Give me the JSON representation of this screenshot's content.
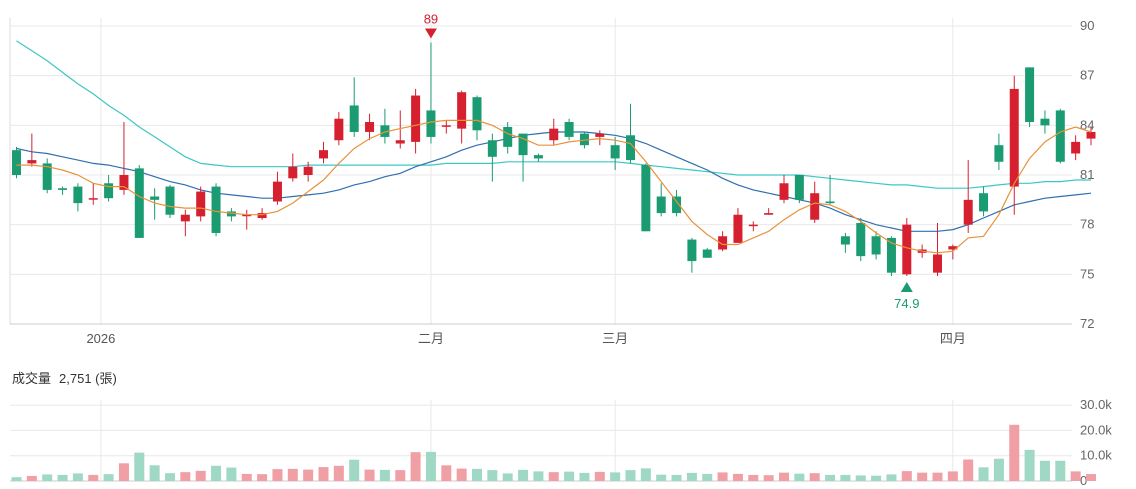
{
  "volume_header": {
    "label": "成交量",
    "value": "2,751 (張)"
  },
  "colors": {
    "up": "#d6202f",
    "down": "#1a9b72",
    "ma_short": "#e8923a",
    "ma_mid": "#2f6fb0",
    "ma_long": "#3cc7c7",
    "vol_up": "#f0a0a5",
    "vol_down": "#9fd8c4",
    "grid": "#e8e8e8"
  },
  "chart_data": [
    {
      "type": "candlestick",
      "title": "",
      "ylim": [
        72,
        90
      ],
      "yticks": [
        "90",
        "87",
        "84",
        "81",
        "78",
        "75",
        "72"
      ],
      "xticks": [
        {
          "label": "2026",
          "index": 5.5
        },
        {
          "label": "二月",
          "index": 27
        },
        {
          "label": "三月",
          "index": 39
        },
        {
          "label": "四月",
          "index": 61
        }
      ],
      "grid": true,
      "annotations": [
        {
          "label": "89",
          "index": 27,
          "value": 89.0,
          "kind": "high"
        },
        {
          "label": "74.9",
          "index": 58,
          "value": 74.9,
          "kind": "low"
        }
      ],
      "candles": [
        [
          82.5,
          81.0,
          82.7,
          80.8
        ],
        [
          81.7,
          81.9,
          83.5,
          81.5
        ],
        [
          81.7,
          80.1,
          82.0,
          79.9
        ],
        [
          80.2,
          80.1,
          80.3,
          79.8
        ],
        [
          80.3,
          79.3,
          80.5,
          78.8
        ],
        [
          79.6,
          79.6,
          80.5,
          79.2
        ],
        [
          80.5,
          79.6,
          81.0,
          79.4
        ],
        [
          80.1,
          81.0,
          84.2,
          79.8
        ],
        [
          81.4,
          77.2,
          81.6,
          77.2
        ],
        [
          79.7,
          79.5,
          80.2,
          78.3
        ],
        [
          80.3,
          78.6,
          80.4,
          78.4
        ],
        [
          78.2,
          78.6,
          78.9,
          77.3
        ],
        [
          78.5,
          80.0,
          80.3,
          78.2
        ],
        [
          80.3,
          77.5,
          80.5,
          77.3
        ],
        [
          78.8,
          78.5,
          79.0,
          78.2
        ],
        [
          78.6,
          78.6,
          78.9,
          77.7
        ],
        [
          78.4,
          78.7,
          79.0,
          78.3
        ],
        [
          79.4,
          80.6,
          81.2,
          79.2
        ],
        [
          80.8,
          81.5,
          82.3,
          80.6
        ],
        [
          81.0,
          81.5,
          81.8,
          80.6
        ],
        [
          82.0,
          82.5,
          83.0,
          81.7
        ],
        [
          83.1,
          84.4,
          84.8,
          82.8
        ],
        [
          85.2,
          83.6,
          86.9,
          83.3
        ],
        [
          83.6,
          84.2,
          84.7,
          83.1
        ],
        [
          84.0,
          83.3,
          85.0,
          82.9
        ],
        [
          82.9,
          83.1,
          84.9,
          82.6
        ],
        [
          83.0,
          85.8,
          86.2,
          82.3
        ],
        [
          84.9,
          83.3,
          89.0,
          82.9
        ],
        [
          84.0,
          84.0,
          84.3,
          83.5
        ],
        [
          83.8,
          86.0,
          86.1,
          82.9
        ],
        [
          85.7,
          83.7,
          85.8,
          83.1
        ],
        [
          83.1,
          82.1,
          83.5,
          80.6
        ],
        [
          83.9,
          82.7,
          84.2,
          82.3
        ],
        [
          83.5,
          82.2,
          83.5,
          80.6
        ],
        [
          82.2,
          82.0,
          82.3,
          81.8
        ],
        [
          83.1,
          83.8,
          84.4,
          82.8
        ],
        [
          84.2,
          83.3,
          84.4,
          83.1
        ],
        [
          83.5,
          82.8,
          83.6,
          82.6
        ],
        [
          83.3,
          83.5,
          83.7,
          82.8
        ],
        [
          82.8,
          82.0,
          83.3,
          81.3
        ],
        [
          83.4,
          81.9,
          85.3,
          81.7
        ],
        [
          81.6,
          77.6,
          81.7,
          77.6
        ],
        [
          79.7,
          78.7,
          80.5,
          78.5
        ],
        [
          79.7,
          78.7,
          80.1,
          78.5
        ],
        [
          77.1,
          75.8,
          77.2,
          75.1
        ],
        [
          76.5,
          76.0,
          76.6,
          76.0
        ],
        [
          76.5,
          77.3,
          77.6,
          76.4
        ],
        [
          76.9,
          78.6,
          79.0,
          76.9
        ],
        [
          78.0,
          78.0,
          78.2,
          77.6
        ],
        [
          78.6,
          78.7,
          79.0,
          78.6
        ],
        [
          79.5,
          80.5,
          81.0,
          79.3
        ],
        [
          81.0,
          79.5,
          81.0,
          79.3
        ],
        [
          78.3,
          79.9,
          80.6,
          78.1
        ],
        [
          79.4,
          79.3,
          81.0,
          79.2
        ],
        [
          77.3,
          76.8,
          77.5,
          76.3
        ],
        [
          78.1,
          76.1,
          78.4,
          75.8
        ],
        [
          77.3,
          76.2,
          77.6,
          75.9
        ],
        [
          77.2,
          75.1,
          77.3,
          74.9
        ],
        [
          75.0,
          78.0,
          78.4,
          74.9
        ],
        [
          76.3,
          76.5,
          76.8,
          76.0
        ],
        [
          75.1,
          76.2,
          78.1,
          74.9
        ],
        [
          76.5,
          76.7,
          76.8,
          75.9
        ],
        [
          78.0,
          79.5,
          81.9,
          77.5
        ],
        [
          79.9,
          78.8,
          80.3,
          78.5
        ],
        [
          82.8,
          81.8,
          83.5,
          81.3
        ],
        [
          80.3,
          86.2,
          87.0,
          78.6
        ],
        [
          87.5,
          84.2,
          87.5,
          83.9
        ],
        [
          84.4,
          84.0,
          84.9,
          83.5
        ],
        [
          84.9,
          81.8,
          85.0,
          81.7
        ],
        [
          82.3,
          83.0,
          83.4,
          81.9
        ],
        [
          83.2,
          83.6,
          83.9,
          82.8
        ]
      ],
      "ma_short": [
        81.6,
        81.6,
        81.5,
        81.3,
        81.0,
        80.5,
        80.3,
        80.3,
        79.7,
        79.3,
        79.1,
        79.0,
        79.0,
        78.8,
        78.7,
        78.6,
        78.6,
        78.8,
        79.3,
        80.0,
        80.7,
        81.7,
        82.6,
        83.2,
        83.6,
        83.8,
        84.0,
        84.2,
        84.3,
        84.3,
        84.3,
        84.0,
        83.5,
        83.2,
        82.8,
        82.8,
        83.0,
        83.1,
        83.2,
        83.1,
        82.9,
        81.8,
        80.6,
        79.4,
        78.2,
        77.4,
        76.8,
        76.8,
        77.2,
        77.6,
        78.3,
        78.9,
        79.3,
        79.2,
        78.8,
        78.2,
        77.5,
        76.9,
        76.6,
        76.4,
        76.3,
        76.4,
        77.2,
        77.3,
        78.6,
        80.5,
        82.0,
        83.0,
        83.6,
        83.9,
        83.6
      ],
      "ma_mid": [
        82.6,
        82.4,
        82.3,
        82.1,
        81.9,
        81.7,
        81.6,
        81.4,
        81.2,
        80.9,
        80.6,
        80.4,
        80.1,
        79.9,
        79.8,
        79.7,
        79.6,
        79.6,
        79.7,
        79.8,
        79.9,
        80.1,
        80.4,
        80.6,
        80.9,
        81.1,
        81.5,
        81.8,
        82.1,
        82.5,
        82.8,
        83.0,
        83.2,
        83.4,
        83.5,
        83.6,
        83.6,
        83.6,
        83.5,
        83.4,
        83.2,
        82.9,
        82.5,
        82.1,
        81.7,
        81.3,
        80.8,
        80.4,
        80.1,
        79.9,
        79.7,
        79.5,
        79.3,
        79.0,
        78.6,
        78.3,
        78.0,
        77.8,
        77.6,
        77.6,
        77.6,
        77.7,
        78.0,
        78.4,
        78.8,
        79.2,
        79.4,
        79.6,
        79.7,
        79.8,
        79.9
      ],
      "ma_long": [
        89.1,
        88.5,
        87.9,
        87.2,
        86.5,
        85.9,
        85.2,
        84.6,
        83.9,
        83.3,
        82.7,
        82.1,
        81.7,
        81.6,
        81.5,
        81.5,
        81.5,
        81.5,
        81.5,
        81.6,
        81.6,
        81.6,
        81.6,
        81.6,
        81.6,
        81.6,
        81.6,
        81.6,
        81.7,
        81.7,
        81.7,
        81.7,
        81.8,
        81.8,
        81.8,
        81.8,
        81.8,
        81.8,
        81.8,
        81.8,
        81.7,
        81.6,
        81.5,
        81.4,
        81.3,
        81.2,
        81.1,
        81.0,
        81.0,
        81.0,
        81.0,
        81.0,
        80.9,
        80.8,
        80.7,
        80.6,
        80.5,
        80.4,
        80.4,
        80.3,
        80.2,
        80.2,
        80.2,
        80.3,
        80.4,
        80.5,
        80.5,
        80.6,
        80.6,
        80.7,
        80.7
      ]
    },
    {
      "type": "bar",
      "title": "",
      "ylim": [
        0,
        32000
      ],
      "yticks": [
        "30.0k",
        "20.0k",
        "10.0k",
        "0"
      ],
      "values": [
        1500,
        2000,
        2600,
        2400,
        3000,
        2400,
        2700,
        7000,
        11200,
        6200,
        3100,
        3500,
        4000,
        6000,
        5300,
        2800,
        2700,
        4700,
        4800,
        4500,
        5500,
        6000,
        8400,
        4500,
        4400,
        4300,
        11400,
        11500,
        6200,
        4900,
        4800,
        4300,
        3000,
        4400,
        3800,
        3500,
        3700,
        3200,
        3600,
        3400,
        4300,
        5000,
        2500,
        2400,
        3200,
        2800,
        3400,
        2800,
        2400,
        2300,
        3300,
        2900,
        3100,
        2400,
        2400,
        2200,
        2100,
        2600,
        3900,
        3300,
        3300,
        3800,
        8500,
        5400,
        8800,
        22200,
        12300,
        8000,
        8000,
        3800,
        2751
      ]
    }
  ]
}
